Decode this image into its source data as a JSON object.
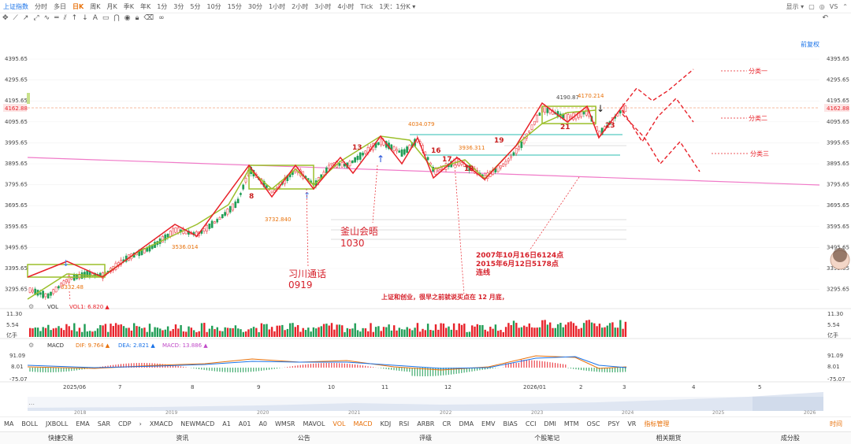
{
  "topbar": {
    "title": "上证指数",
    "periods": [
      "分时",
      "多日",
      "日K",
      "周K",
      "月K",
      "季K",
      "年K",
      "1分",
      "3分",
      "5分",
      "10分",
      "15分",
      "30分",
      "1小时",
      "2小时",
      "3小时",
      "4小时",
      "Tick",
      "1天：1分K ▾"
    ],
    "active_period": "日K",
    "display_label": "显示 ▾",
    "vs_label": "VS"
  },
  "restore_label": "前复权",
  "price_axis": [
    "4395.65",
    "4295.65",
    "4195.65",
    "4095.65",
    "3995.65",
    "3895.65",
    "3795.65",
    "3695.65",
    "3595.65",
    "3495.65",
    "3395.65",
    "3295.65"
  ],
  "current_price": "4162.88",
  "price_labels": {
    "high_4190": "4190.87",
    "high_4170": "4170.214",
    "p4034": "4034.079",
    "p3936": "3936.311",
    "p3732": "3732.840",
    "p3536": "3536.014",
    "p3332": "3332.48"
  },
  "wave_numbers": [
    "8",
    "13",
    "16",
    "17",
    "18",
    "19",
    "21",
    "23"
  ],
  "annotations": {
    "xi_call_1": "习川通话",
    "xi_call_2": "0919",
    "busan_1": "釜山会晤",
    "busan_2": "1030",
    "line_note_1": "2007年10月16日6124点",
    "line_note_2": "2015年6月12日5178点",
    "line_note_3": "连线",
    "dec_note": "上证和创业，很早之前就说买点在 12 月底，",
    "scenario_1": "分类一",
    "scenario_2": "分类二",
    "scenario_3": "分类三"
  },
  "vol_panel": {
    "label": "VOL",
    "vol1": "VOL1: 6.820 ▲",
    "axis": [
      "11.30",
      "5.54",
      "亿手"
    ]
  },
  "macd_panel": {
    "label": "MACD",
    "dif": "DIF: 9.764 ▲",
    "dea": "DEA: 2.821 ▲",
    "macd": "MACD: 13.886 ▲",
    "axis": [
      "91.09",
      "8.01",
      "-75.07"
    ]
  },
  "date_axis": [
    "2025/06",
    "7",
    "8",
    "9",
    "10",
    "11",
    "12",
    "2026/01",
    "2",
    "3",
    "4",
    "5"
  ],
  "overview_years": [
    "2018",
    "2019",
    "2020",
    "2021",
    "2022",
    "2023",
    "2024",
    "2025",
    "2026"
  ],
  "indicators": [
    "MA",
    "BOLL",
    "JXBOLL",
    "EMA",
    "SAR",
    "CDP",
    "›",
    "XMACD",
    "NEWMACD",
    "A1",
    "A01",
    "A0",
    "WMSR",
    "MAVOL",
    "VOL",
    "MACD",
    "KDJ",
    "RSI",
    "ARBR",
    "CR",
    "DMA",
    "EMV",
    "BIAS",
    "CCI",
    "DMI",
    "MTM",
    "OSC",
    "PSY",
    "VR",
    "指标管理"
  ],
  "indicators_active": [
    "VOL",
    "MACD",
    "指标管理"
  ],
  "time_label": "时间",
  "footer": [
    "快捷交易",
    "资讯",
    "公告",
    "评级",
    "个股笔记",
    "相关期货",
    "成分股"
  ],
  "colors": {
    "up": "#e8222a",
    "down": "#1f9d55",
    "wave_red": "#e8222a",
    "wave_green": "#9bbf2a",
    "trend_pink": "#f07ac8",
    "accent": "#1a73e8",
    "highlight": "#e8710a"
  }
}
